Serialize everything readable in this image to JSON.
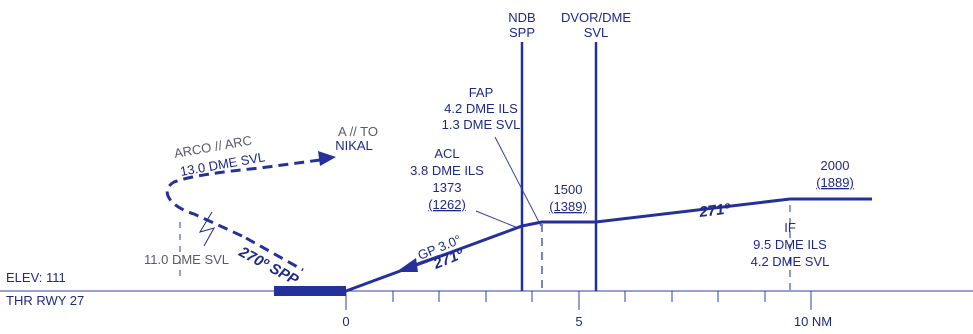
{
  "fixes": {
    "ndb": {
      "line1": "NDB",
      "line2": "SPP"
    },
    "dvor": {
      "line1": "DVOR/DME",
      "line2": "SVL"
    },
    "fap": {
      "line1": "FAP",
      "line2": "4.2 DME ILS",
      "line3": "1.3 DME SVL"
    },
    "acl": {
      "line1": "ACL",
      "line2": "3.8 DME ILS",
      "line3": "1373",
      "line4": "(1262)"
    },
    "mid": {
      "alt": "1500",
      "alt_paren": "(1389)"
    },
    "init": {
      "alt": "2000",
      "alt_paren": "(1889)"
    },
    "if": {
      "line1": "IF",
      "line2": "9.5 DME ILS",
      "line3": "4.2 DME SVL"
    }
  },
  "procedures": {
    "missed_top": {
      "line1": "A // TO",
      "line2": "NIKAL"
    },
    "arc": {
      "line1": "ARCO // ARC",
      "line2": "13.0 DME SVL"
    },
    "dme11": "11.0 DME SVL",
    "gp": "GP 3.0°",
    "course_final": "271º",
    "course_inbound": "271º",
    "course_outbound": "270º SPP"
  },
  "runway": {
    "elev": "ELEV: 111",
    "thr": "THR RWY 27"
  },
  "scale": {
    "tick0": "0",
    "tick5": "5",
    "tick10": "10 NM"
  },
  "colors": {
    "route": "#24309b",
    "text": "#1f2a86",
    "gray": "#5b5b66"
  }
}
